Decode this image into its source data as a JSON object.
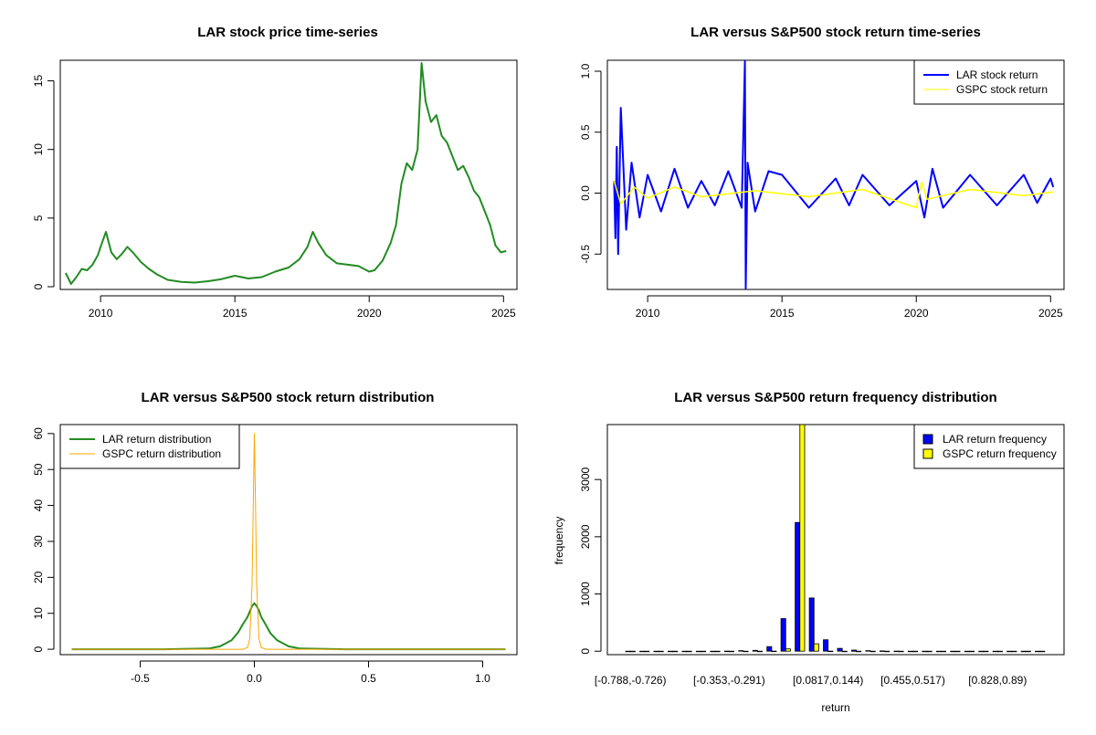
{
  "chart_data": [
    {
      "id": "p1",
      "type": "line",
      "title": "LAR stock price time-series",
      "xlabel": "",
      "ylabel": "",
      "xlim": [
        2008.5,
        2025.5
      ],
      "ylim": [
        -0.2,
        16.5
      ],
      "x_ticks": [
        2010,
        2015,
        2020,
        2025
      ],
      "y_ticks": [
        0,
        5,
        10,
        15
      ],
      "series": [
        {
          "color": "#228B22",
          "x": [
            2008.7,
            2008.9,
            2009.1,
            2009.3,
            2009.5,
            2009.7,
            2009.9,
            2010.0,
            2010.2,
            2010.4,
            2010.6,
            2010.8,
            2011.0,
            2011.2,
            2011.5,
            2011.8,
            2012.1,
            2012.5,
            2013.0,
            2013.5,
            2014.0,
            2014.5,
            2015.0,
            2015.5,
            2016.0,
            2016.5,
            2017.0,
            2017.4,
            2017.7,
            2017.9,
            2018.1,
            2018.4,
            2018.8,
            2019.2,
            2019.6,
            2020.0,
            2020.2,
            2020.5,
            2020.8,
            2021.0,
            2021.2,
            2021.4,
            2021.6,
            2021.8,
            2021.95,
            2022.1,
            2022.3,
            2022.5,
            2022.7,
            2022.9,
            2023.1,
            2023.3,
            2023.5,
            2023.7,
            2023.9,
            2024.1,
            2024.3,
            2024.5,
            2024.7,
            2024.9,
            2025.1
          ],
          "y": [
            1.0,
            0.2,
            0.7,
            1.3,
            1.2,
            1.6,
            2.3,
            2.9,
            4.0,
            2.5,
            2.0,
            2.4,
            2.9,
            2.5,
            1.8,
            1.3,
            0.9,
            0.5,
            0.35,
            0.3,
            0.4,
            0.55,
            0.8,
            0.6,
            0.7,
            1.1,
            1.4,
            2.0,
            2.9,
            4.0,
            3.2,
            2.3,
            1.7,
            1.6,
            1.5,
            1.1,
            1.2,
            1.9,
            3.2,
            4.5,
            7.5,
            9.0,
            8.5,
            10.0,
            16.3,
            13.5,
            12.0,
            12.5,
            11.0,
            10.5,
            9.5,
            8.5,
            8.8,
            8.0,
            7.0,
            6.5,
            5.5,
            4.5,
            3.0,
            2.5,
            2.6
          ]
        }
      ]
    },
    {
      "id": "p2",
      "type": "line",
      "title": "LAR versus S&P500 stock return time-series",
      "xlabel": "",
      "ylabel": "",
      "xlim": [
        2008.5,
        2025.5
      ],
      "ylim": [
        -0.79,
        1.09
      ],
      "x_ticks": [
        2010,
        2015,
        2020,
        2025
      ],
      "y_ticks": [
        -0.5,
        0.0,
        0.5,
        1.0
      ],
      "y_tick_labels": [
        "-0.5",
        "0.0",
        "0.5",
        "1.0"
      ],
      "legend": {
        "position": "top-right",
        "entries": [
          {
            "label": "LAR stock return",
            "color": "#0000FF"
          },
          {
            "label": "GSPC stock return",
            "color": "#FFFF00"
          }
        ]
      },
      "series": [
        {
          "name": "LAR stock return",
          "color": "#0000FF",
          "x": [
            2008.75,
            2008.8,
            2008.85,
            2008.9,
            2009.0,
            2009.2,
            2009.4,
            2009.7,
            2010.0,
            2010.5,
            2011.0,
            2011.5,
            2012.0,
            2012.5,
            2013.0,
            2013.5,
            2013.62,
            2013.65,
            2013.72,
            2014.0,
            2014.5,
            2015.0,
            2016.0,
            2017.0,
            2017.5,
            2018.0,
            2019.0,
            2020.0,
            2020.3,
            2020.6,
            2021.0,
            2022.0,
            2023.0,
            2024.0,
            2024.5,
            2025.0,
            2025.1
          ],
          "y": [
            0.1,
            -0.37,
            0.38,
            -0.5,
            0.7,
            -0.3,
            0.25,
            -0.2,
            0.15,
            -0.15,
            0.2,
            -0.12,
            0.1,
            -0.1,
            0.18,
            -0.12,
            1.08,
            -0.78,
            0.25,
            -0.15,
            0.18,
            0.15,
            -0.12,
            0.12,
            -0.1,
            0.15,
            -0.1,
            0.1,
            -0.2,
            0.2,
            -0.12,
            0.15,
            -0.1,
            0.15,
            -0.08,
            0.12,
            0.05
          ]
        },
        {
          "name": "GSPC stock return",
          "color": "#FFFF00",
          "x": [
            2008.75,
            2009.0,
            2009.5,
            2010.0,
            2011.0,
            2012.0,
            2014.0,
            2016.0,
            2018.0,
            2020.0,
            2020.2,
            2020.4,
            2022.0,
            2024.0,
            2025.1
          ],
          "y": [
            0.1,
            -0.09,
            0.05,
            -0.04,
            0.05,
            -0.03,
            0.02,
            -0.03,
            0.03,
            -0.12,
            0.09,
            -0.05,
            0.03,
            -0.02,
            0.01
          ]
        }
      ]
    },
    {
      "id": "p3",
      "type": "line",
      "title": "LAR versus S&P500 stock return distribution",
      "xlabel": "",
      "ylabel": "",
      "xlim": [
        -0.85,
        1.15
      ],
      "ylim": [
        -1.5,
        62.5
      ],
      "x_ticks": [
        -0.5,
        0.0,
        0.5,
        1.0
      ],
      "x_tick_labels": [
        "-0.5",
        "0.0",
        "0.5",
        "1.0"
      ],
      "y_ticks": [
        0,
        10,
        20,
        30,
        40,
        50,
        60
      ],
      "legend": {
        "position": "top-left",
        "entries": [
          {
            "label": "LAR return distribution",
            "color": "#228B22"
          },
          {
            "label": "GSPC return distribution",
            "color": "#FFA500"
          }
        ]
      },
      "series": [
        {
          "name": "LAR return distribution",
          "color": "#228B22",
          "x": [
            -0.8,
            -0.4,
            -0.2,
            -0.15,
            -0.1,
            -0.07,
            -0.05,
            -0.03,
            -0.02,
            -0.01,
            0.0,
            0.01,
            0.02,
            0.03,
            0.05,
            0.07,
            0.1,
            0.15,
            0.2,
            0.4,
            1.1
          ],
          "y": [
            0,
            0,
            0.2,
            0.8,
            2.5,
            4.8,
            7.0,
            9.0,
            10.5,
            12.0,
            12.8,
            12.0,
            10.8,
            9.0,
            6.8,
            4.5,
            2.5,
            0.8,
            0.2,
            0,
            0
          ]
        },
        {
          "name": "GSPC return distribution",
          "color": "#FFA500",
          "x": [
            -0.8,
            -0.05,
            -0.03,
            -0.02,
            -0.01,
            -0.005,
            0.0,
            0.005,
            0.01,
            0.02,
            0.03,
            0.05,
            1.1
          ],
          "y": [
            0,
            0,
            0.5,
            3.0,
            18.0,
            40.0,
            60.0,
            40.0,
            18.0,
            3.0,
            0.5,
            0,
            0
          ]
        }
      ]
    },
    {
      "id": "p4",
      "type": "bar",
      "title": "LAR versus S&P500 return frequency distribution",
      "xlabel": "return",
      "ylabel": "frequency",
      "ylim": [
        -60,
        3960
      ],
      "y_ticks": [
        0,
        1000,
        2000,
        3000
      ],
      "shown_category_labels": [
        "[-0.788,-0.726)",
        "[-0.353,-0.291)",
        "[0.0817,0.144)",
        "[0.455,0.517)",
        "[0.828,0.89)"
      ],
      "legend": {
        "position": "top-right",
        "entries": [
          {
            "label": "LAR return frequency",
            "color": "#0000FF"
          },
          {
            "label": "GSPC return frequency",
            "color": "#FFFF00"
          }
        ]
      },
      "categories": [
        "[-0.788,-0.726)",
        "[-0.726,-0.664)",
        "[-0.664,-0.602)",
        "[-0.602,-0.540)",
        "[-0.540,-0.477)",
        "[-0.477,-0.415)",
        "[-0.415,-0.353)",
        "[-0.353,-0.291)",
        "[-0.291,-0.229)",
        "[-0.229,-0.167)",
        "[-0.167,-0.105)",
        "[-0.105,-0.043)",
        "[-0.043,0.0196)",
        "[0.0196,0.0817)",
        "[0.0817,0.144)",
        "[0.144,0.206)",
        "[0.206,0.268)",
        "[0.268,0.330)",
        "[0.330,0.392)",
        "[0.392,0.455)",
        "[0.455,0.517)",
        "[0.517,0.579)",
        "[0.579,0.641)",
        "[0.641,0.703)",
        "[0.703,0.766)",
        "[0.766,0.828)",
        "[0.828,0.89)",
        "[0.89,0.952)",
        "[0.952,1.01)",
        "[1.01,1.08)"
      ],
      "series": [
        {
          "name": "LAR return frequency",
          "color": "#0000FF",
          "values": [
            1,
            0,
            0,
            0,
            0,
            0,
            1,
            2,
            10,
            15,
            80,
            570,
            2250,
            930,
            200,
            50,
            20,
            10,
            5,
            2,
            1,
            0,
            0,
            0,
            0,
            0,
            0,
            0,
            0,
            1
          ]
        },
        {
          "name": "GSPC return frequency",
          "color": "#FFFF00",
          "values": [
            0,
            0,
            0,
            0,
            0,
            0,
            0,
            0,
            0,
            0,
            3,
            40,
            3960,
            130,
            3,
            0,
            0,
            0,
            0,
            0,
            0,
            0,
            0,
            0,
            0,
            0,
            0,
            0,
            0,
            0
          ]
        }
      ]
    }
  ]
}
